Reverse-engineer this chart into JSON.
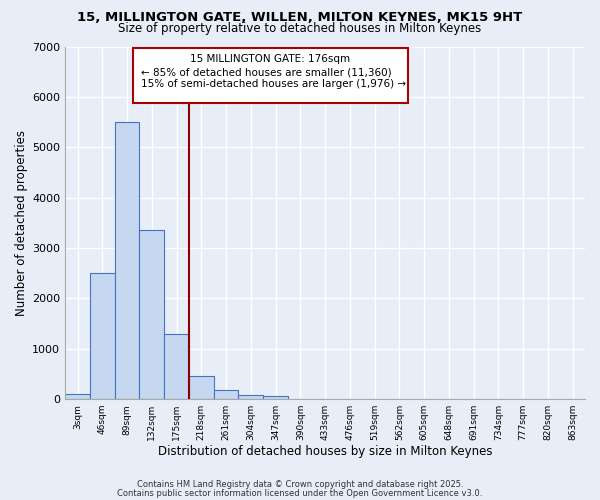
{
  "title1": "15, MILLINGTON GATE, WILLEN, MILTON KEYNES, MK15 9HT",
  "title2": "Size of property relative to detached houses in Milton Keynes",
  "xlabel": "Distribution of detached houses by size in Milton Keynes",
  "ylabel": "Number of detached properties",
  "categories": [
    "3sqm",
    "46sqm",
    "89sqm",
    "132sqm",
    "175sqm",
    "218sqm",
    "261sqm",
    "304sqm",
    "347sqm",
    "390sqm",
    "433sqm",
    "476sqm",
    "519sqm",
    "562sqm",
    "605sqm",
    "648sqm",
    "691sqm",
    "734sqm",
    "777sqm",
    "820sqm",
    "863sqm"
  ],
  "values": [
    100,
    2500,
    5500,
    3350,
    1300,
    450,
    180,
    80,
    60,
    0,
    0,
    0,
    0,
    0,
    0,
    0,
    0,
    0,
    0,
    0,
    0
  ],
  "bar_color": "#c5d8f0",
  "bar_edge_color": "#4472c4",
  "background_color": "#e8eef7",
  "grid_color": "#ffffff",
  "annotation_box_color": "#ffffff",
  "annotation_border_color": "#aa0000",
  "vline_color": "#8b0000",
  "vline_x_index": 4,
  "annotation_title": "15 MILLINGTON GATE: 176sqm",
  "annotation_line1": "← 85% of detached houses are smaller (11,360)",
  "annotation_line2": "15% of semi-detached houses are larger (1,976) →",
  "footer1": "Contains HM Land Registry data © Crown copyright and database right 2025.",
  "footer2": "Contains public sector information licensed under the Open Government Licence v3.0.",
  "ylim": [
    0,
    7000
  ],
  "yticks": [
    0,
    1000,
    2000,
    3000,
    4000,
    5000,
    6000,
    7000
  ]
}
